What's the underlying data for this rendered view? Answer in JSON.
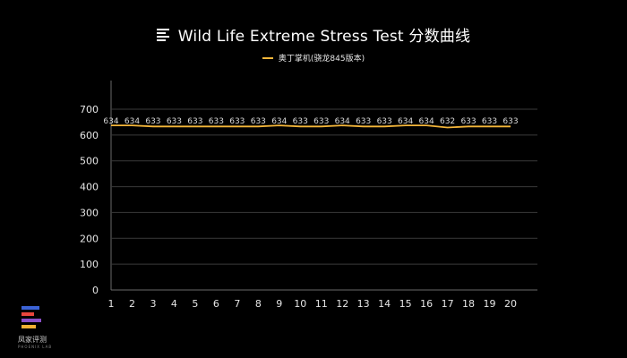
{
  "header": {
    "title": "Wild Life Extreme Stress Test 分数曲线",
    "title_icon": "list-lines-icon"
  },
  "brand": {
    "logo_name": "凤家评测",
    "logo_sub": "PHOENIX LAB",
    "colors": [
      "#3b63d6",
      "#e8463c",
      "#8b4fc9",
      "#f2b233"
    ]
  },
  "colors": {
    "background": "#000000",
    "series": "#f4b63a",
    "grid": "#3a3a3a",
    "text": "#e6e6e6"
  },
  "chart_data": {
    "type": "line",
    "title": "Wild Life Extreme Stress Test 分数曲线",
    "xlabel": "",
    "ylabel": "",
    "x": [
      1,
      2,
      3,
      4,
      5,
      6,
      7,
      8,
      9,
      10,
      11,
      12,
      13,
      14,
      15,
      16,
      17,
      18,
      19,
      20
    ],
    "ylim": [
      0,
      700
    ],
    "yticks": [
      0,
      100,
      200,
      300,
      400,
      500,
      600,
      700
    ],
    "grid": true,
    "legend_position": "top-center",
    "series": [
      {
        "name": "奥丁掌机(骁龙845版本)",
        "values": [
          634,
          634,
          633,
          633,
          633,
          633,
          633,
          633,
          634,
          633,
          633,
          634,
          633,
          633,
          634,
          634,
          632,
          633,
          633,
          633
        ],
        "data_labels": true
      }
    ]
  }
}
